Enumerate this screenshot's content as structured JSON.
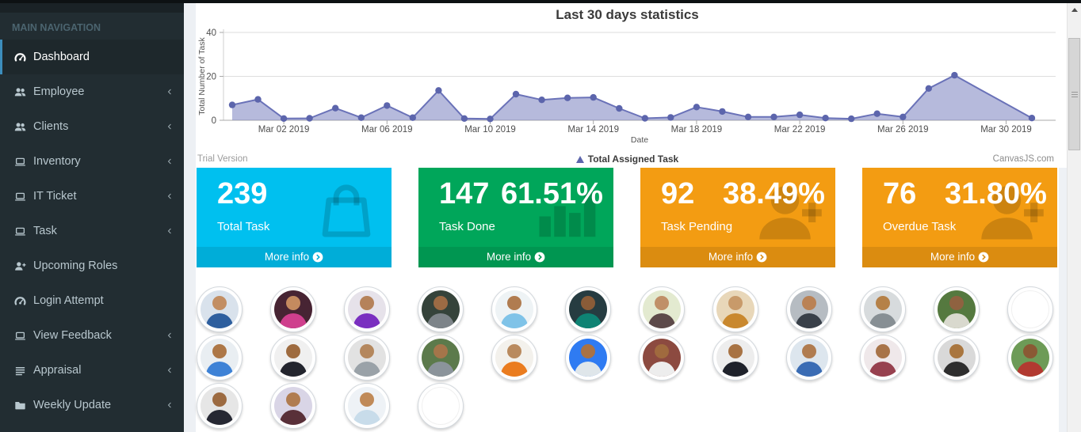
{
  "sidebar": {
    "header": "MAIN NAVIGATION",
    "items": [
      {
        "label": "Dashboard",
        "icon": "gauge-icon",
        "active": true,
        "chevron": false
      },
      {
        "label": "Employee",
        "icon": "users-icon",
        "active": false,
        "chevron": true
      },
      {
        "label": "Clients",
        "icon": "users-icon",
        "active": false,
        "chevron": true
      },
      {
        "label": "Inventory",
        "icon": "laptop-icon",
        "active": false,
        "chevron": true
      },
      {
        "label": "IT Ticket",
        "icon": "laptop-icon",
        "active": false,
        "chevron": true
      },
      {
        "label": "Task",
        "icon": "laptop-icon",
        "active": false,
        "chevron": true
      },
      {
        "label": "Upcoming Roles",
        "icon": "user-plus-icon",
        "active": false,
        "chevron": false
      },
      {
        "label": "Login Attempt",
        "icon": "gauge-icon",
        "active": false,
        "chevron": false
      },
      {
        "label": "View Feedback",
        "icon": "laptop-icon",
        "active": false,
        "chevron": true
      },
      {
        "label": "Appraisal",
        "icon": "list-icon",
        "active": false,
        "chevron": true
      },
      {
        "label": "Weekly Update",
        "icon": "folder-icon",
        "active": false,
        "chevron": true
      }
    ]
  },
  "chart_data": {
    "type": "area",
    "title": "Last 30 days statistics",
    "xlabel": "Date",
    "ylabel": "Total Number of Task",
    "ylim": [
      0,
      40
    ],
    "yticks": [
      0,
      20,
      40
    ],
    "legend": "Total Assigned Task",
    "legend_position": "bottom",
    "grid": "horizontal-only",
    "watermark_left": "Trial Version",
    "watermark_right": "CanvasJS.com",
    "series_color": "#6a72b8",
    "fill_color": "rgba(122,129,191,0.55)",
    "marker_color": "#5c65ac",
    "x": [
      "Feb 28",
      "Mar 01",
      "Mar 02",
      "Mar 03",
      "Mar 04",
      "Mar 05",
      "Mar 06",
      "Mar 07",
      "Mar 08",
      "Mar 09",
      "Mar 10",
      "Mar 11",
      "Mar 12",
      "Mar 13",
      "Mar 14",
      "Mar 15",
      "Mar 16",
      "Mar 17",
      "Mar 18",
      "Mar 19",
      "Mar 20",
      "Mar 21",
      "Mar 22",
      "Mar 23",
      "Mar 24",
      "Mar 25",
      "Mar 26",
      "Mar 27",
      "Mar 28",
      "Mar 29",
      "Mar 30",
      "Mar 31"
    ],
    "values": [
      7,
      9.5,
      0.8,
      0.9,
      5.5,
      1.2,
      6.7,
      1.2,
      13.6,
      0.8,
      0.6,
      11.9,
      9.3,
      10.2,
      10.4,
      5.4,
      0.9,
      1.3,
      6,
      4,
      1.5,
      1.5,
      2.5,
      1,
      0.7,
      3,
      1.5,
      14.5,
      20.5,
      14,
      7.5,
      1
    ],
    "markers": [
      1,
      1,
      1,
      1,
      1,
      1,
      1,
      1,
      1,
      1,
      1,
      1,
      1,
      1,
      1,
      1,
      1,
      1,
      1,
      1,
      1,
      1,
      1,
      1,
      1,
      1,
      1,
      1,
      1,
      0,
      0,
      1
    ],
    "tick_indices": [
      2,
      6,
      10,
      14,
      18,
      22,
      26,
      30
    ],
    "tick_labels": [
      "Mar 02 2019",
      "Mar 06 2019",
      "Mar 10 2019",
      "Mar 14 2019",
      "Mar 18 2019",
      "Mar 22 2019",
      "Mar 26 2019",
      "Mar 30 2019"
    ]
  },
  "info_boxes": [
    {
      "value": "239",
      "percent": "",
      "label": "Total Task",
      "more": "More info",
      "icon": "bag-icon",
      "color": "#00c0ef",
      "footer_color": "#00add8"
    },
    {
      "value": "147",
      "percent": "61.51%",
      "label": "Task Done",
      "more": "More info",
      "icon": "stats-bars-icon",
      "color": "#00a65a",
      "footer_color": "#009651"
    },
    {
      "value": "92",
      "percent": "38.49%",
      "label": "Task Pending",
      "more": "More info",
      "icon": "person-plus-icon",
      "color": "#f39c12",
      "footer_color": "#db8c10"
    },
    {
      "value": "76",
      "percent": "31.80%",
      "label": "Overdue Task",
      "more": "More info",
      "icon": "person-plus-icon",
      "color": "#f39c12",
      "footer_color": "#db8c10"
    }
  ],
  "avatars": {
    "rows": [
      [
        {
          "bg": "#d9e2ec",
          "shirt": "#2e5f9e",
          "skin": "#c28e63"
        },
        {
          "bg": "#472433",
          "shirt": "#cf3f8d",
          "skin": "#c48a5f"
        },
        {
          "bg": "#e6e2ea",
          "shirt": "#7a2fc0",
          "skin": "#b5825a"
        },
        {
          "bg": "#35433a",
          "shirt": "#7d8489",
          "skin": "#9c6b44"
        },
        {
          "bg": "#eef3f5",
          "shirt": "#7fc3e8",
          "skin": "#b07c50"
        },
        {
          "bg": "#263c41",
          "shirt": "#0e8374",
          "skin": "#8a5c38"
        },
        {
          "bg": "#e3ead0",
          "shirt": "#5d4a4a",
          "skin": "#c09068"
        },
        {
          "bg": "#e8d7b9",
          "shirt": "#c9882e",
          "skin": "#c89a6a"
        },
        {
          "bg": "#b6bcc2",
          "shirt": "#394049",
          "skin": "#ba8255"
        },
        {
          "bg": "#d7dbdd",
          "shirt": "#878f94",
          "skin": "#b58148"
        },
        {
          "bg": "#55793f",
          "shirt": "#d9d9ce",
          "skin": "#8f6240"
        },
        {
          "blank": true
        }
      ],
      [
        {
          "bg": "#e9eef2",
          "shirt": "#3e82d6",
          "skin": "#ad7747"
        },
        {
          "bg": "#f0f0f0",
          "shirt": "#23252e",
          "skin": "#9e6b3f"
        },
        {
          "bg": "#e2e2e2",
          "shirt": "#9aa2a8",
          "skin": "#b4875d"
        },
        {
          "bg": "#5c7a4b",
          "shirt": "#8b949b",
          "skin": "#a5754a"
        },
        {
          "bg": "#f3f1ec",
          "shirt": "#ea7c1f",
          "skin": "#b98a5e"
        },
        {
          "bg": "#2f7bf2",
          "shirt": "#dfe6ea",
          "skin": "#a97245"
        },
        {
          "bg": "#8c4a40",
          "shirt": "#ededed",
          "skin": "#a06a3e"
        },
        {
          "bg": "#ededed",
          "shirt": "#1f222b",
          "skin": "#a87344"
        },
        {
          "bg": "#dde6ee",
          "shirt": "#3a6cb4",
          "skin": "#b07c50"
        },
        {
          "bg": "#efe8ea",
          "shirt": "#97414f",
          "skin": "#a87348"
        },
        {
          "bg": "#d9d9d9",
          "shirt": "#2e2e2e",
          "skin": "#a9763f"
        },
        {
          "bg": "#6d9b57",
          "shirt": "#b23a31",
          "skin": "#8a5a34"
        }
      ],
      [
        {
          "bg": "#e6e6e6",
          "shirt": "#262833",
          "skin": "#9c6a40"
        },
        {
          "bg": "#d9d5e6",
          "shirt": "#593039",
          "skin": "#b07c50"
        },
        {
          "bg": "#eef2f6",
          "shirt": "#c8dcea",
          "skin": "#c08a58"
        },
        {
          "blank": true
        }
      ]
    ]
  }
}
